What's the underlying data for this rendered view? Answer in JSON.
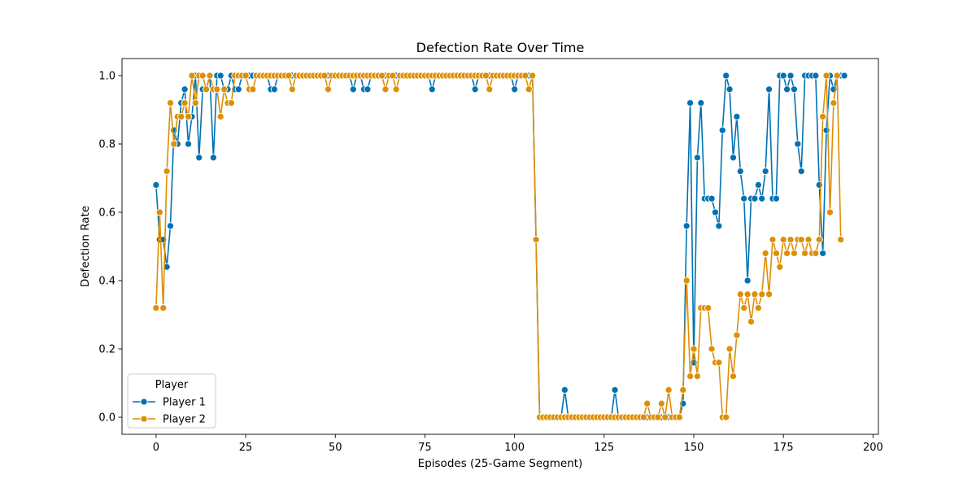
{
  "chart_data": {
    "type": "line",
    "title": "Defection Rate Over Time",
    "xlabel": "Episodes (25-Game Segment)",
    "ylabel": "Defection Rate",
    "xlim": [
      -9.5,
      201.5
    ],
    "ylim": [
      -0.05,
      1.05
    ],
    "xticks": [
      0,
      25,
      50,
      75,
      100,
      125,
      150,
      175,
      200
    ],
    "xtick_labels": [
      "0",
      "25",
      "50",
      "75",
      "100",
      "125",
      "150",
      "175",
      "200"
    ],
    "yticks": [
      0.0,
      0.2,
      0.4,
      0.6,
      0.8,
      1.0
    ],
    "ytick_labels": [
      "0.0",
      "0.2",
      "0.4",
      "0.6",
      "0.8",
      "1.0"
    ],
    "grid": false,
    "legend": {
      "title": "Player",
      "position": "lower-left"
    },
    "series": [
      {
        "name": "Player 1",
        "color": "#0072b2",
        "marker": "circle",
        "values": [
          0.68,
          0.52,
          0.52,
          0.44,
          0.56,
          0.84,
          0.8,
          0.92,
          0.96,
          0.8,
          0.88,
          1.0,
          0.76,
          0.96,
          0.96,
          1.0,
          0.76,
          1.0,
          1.0,
          0.96,
          0.96,
          1.0,
          0.96,
          0.96,
          1.0,
          1.0,
          1.0,
          1.0,
          1.0,
          1.0,
          1.0,
          1.0,
          0.96,
          0.96,
          1.0,
          1.0,
          1.0,
          1.0,
          1.0,
          1.0,
          1.0,
          1.0,
          1.0,
          1.0,
          1.0,
          1.0,
          1.0,
          1.0,
          1.0,
          1.0,
          1.0,
          1.0,
          1.0,
          1.0,
          1.0,
          0.96,
          1.0,
          1.0,
          0.96,
          0.96,
          1.0,
          1.0,
          1.0,
          1.0,
          1.0,
          1.0,
          1.0,
          1.0,
          1.0,
          1.0,
          1.0,
          1.0,
          1.0,
          1.0,
          1.0,
          1.0,
          1.0,
          0.96,
          1.0,
          1.0,
          1.0,
          1.0,
          1.0,
          1.0,
          1.0,
          1.0,
          1.0,
          1.0,
          1.0,
          0.96,
          1.0,
          1.0,
          1.0,
          1.0,
          1.0,
          1.0,
          1.0,
          1.0,
          1.0,
          1.0,
          0.96,
          1.0,
          1.0,
          1.0,
          1.0,
          1.0,
          0.52,
          0.0,
          0.0,
          0.0,
          0.0,
          0.0,
          0.0,
          0.0,
          0.08,
          0.0,
          0.0,
          0.0,
          0.0,
          0.0,
          0.0,
          0.0,
          0.0,
          0.0,
          0.0,
          0.0,
          0.0,
          0.0,
          0.08,
          0.0,
          0.0,
          0.0,
          0.0,
          0.0,
          0.0,
          0.0,
          0.0,
          0.0,
          0.0,
          0.0,
          0.0,
          0.0,
          0.0,
          0.0,
          0.0,
          0.0,
          0.0,
          0.04,
          0.56,
          0.92,
          0.16,
          0.76,
          0.92,
          0.64,
          0.64,
          0.64,
          0.6,
          0.56,
          0.84,
          1.0,
          0.96,
          0.76,
          0.88,
          0.72,
          0.64,
          0.4,
          0.64,
          0.64,
          0.68,
          0.64,
          0.72,
          0.96,
          0.64,
          0.64,
          1.0,
          1.0,
          0.96,
          1.0,
          0.96,
          0.8,
          0.72,
          1.0,
          1.0,
          1.0,
          1.0,
          0.68,
          0.48,
          0.84,
          1.0,
          0.96,
          1.0,
          1.0,
          1.0
        ]
      },
      {
        "name": "Player 2",
        "color": "#de8f05",
        "marker": "circle",
        "values": [
          0.32,
          0.6,
          0.32,
          0.72,
          0.92,
          0.8,
          0.88,
          0.88,
          0.92,
          0.88,
          1.0,
          0.92,
          1.0,
          1.0,
          0.96,
          1.0,
          0.96,
          0.96,
          0.88,
          0.96,
          0.92,
          0.92,
          1.0,
          1.0,
          1.0,
          1.0,
          0.96,
          0.96,
          1.0,
          1.0,
          1.0,
          1.0,
          1.0,
          1.0,
          1.0,
          1.0,
          1.0,
          1.0,
          0.96,
          1.0,
          1.0,
          1.0,
          1.0,
          1.0,
          1.0,
          1.0,
          1.0,
          1.0,
          0.96,
          1.0,
          1.0,
          1.0,
          1.0,
          1.0,
          1.0,
          1.0,
          1.0,
          1.0,
          1.0,
          1.0,
          1.0,
          1.0,
          1.0,
          1.0,
          0.96,
          1.0,
          1.0,
          0.96,
          1.0,
          1.0,
          1.0,
          1.0,
          1.0,
          1.0,
          1.0,
          1.0,
          1.0,
          1.0,
          1.0,
          1.0,
          1.0,
          1.0,
          1.0,
          1.0,
          1.0,
          1.0,
          1.0,
          1.0,
          1.0,
          1.0,
          1.0,
          1.0,
          1.0,
          0.96,
          1.0,
          1.0,
          1.0,
          1.0,
          1.0,
          1.0,
          1.0,
          1.0,
          1.0,
          1.0,
          0.96,
          1.0,
          0.52,
          0.0,
          0.0,
          0.0,
          0.0,
          0.0,
          0.0,
          0.0,
          0.0,
          0.0,
          0.0,
          0.0,
          0.0,
          0.0,
          0.0,
          0.0,
          0.0,
          0.0,
          0.0,
          0.0,
          0.0,
          0.0,
          0.0,
          0.0,
          0.0,
          0.0,
          0.0,
          0.0,
          0.0,
          0.0,
          0.0,
          0.04,
          0.0,
          0.0,
          0.0,
          0.04,
          0.0,
          0.08,
          0.0,
          0.0,
          0.0,
          0.08,
          0.4,
          0.12,
          0.2,
          0.12,
          0.32,
          0.32,
          0.32,
          0.2,
          0.16,
          0.16,
          0.0,
          0.0,
          0.2,
          0.12,
          0.24,
          0.36,
          0.32,
          0.36,
          0.28,
          0.36,
          0.32,
          0.36,
          0.48,
          0.36,
          0.52,
          0.48,
          0.44,
          0.52,
          0.48,
          0.52,
          0.48,
          0.52,
          0.52,
          0.48,
          0.52,
          0.48,
          0.48,
          0.52,
          0.88,
          1.0,
          0.6,
          0.92,
          1.0,
          0.52
        ]
      }
    ]
  }
}
